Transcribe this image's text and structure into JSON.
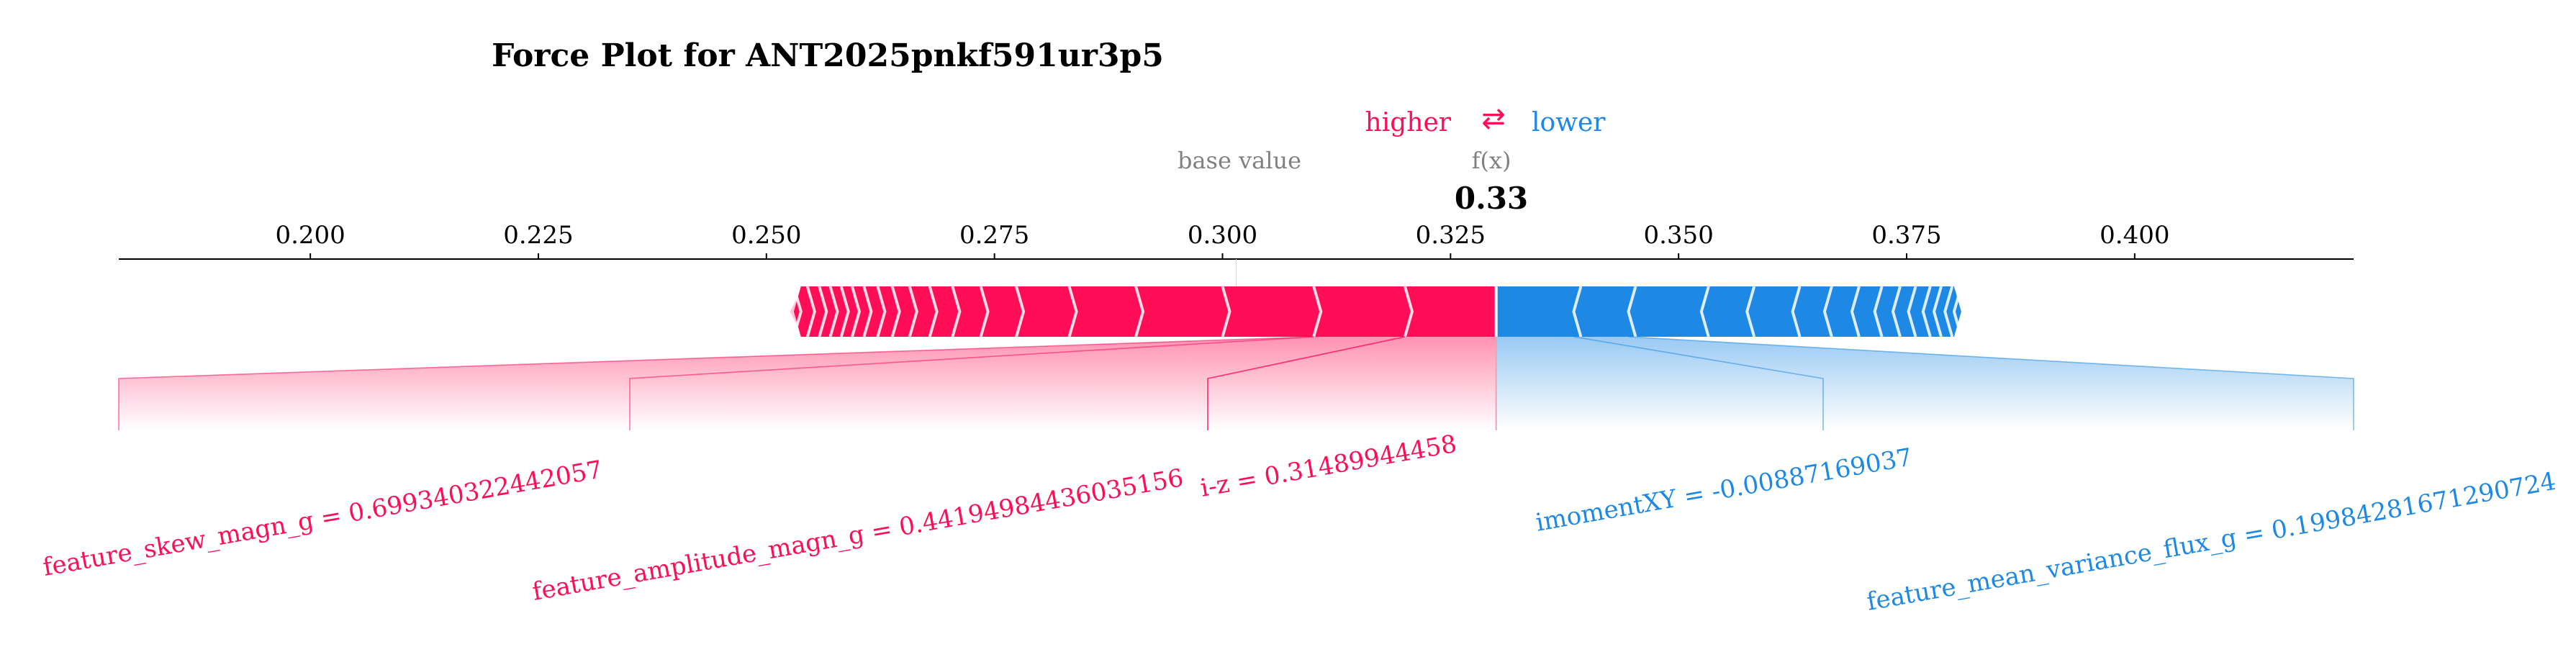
{
  "chart_data": {
    "type": "force_plot",
    "title": "Force Plot for ANT2025pnkf591ur3p5",
    "legend": {
      "higher_label": "higher",
      "arrow_glyph": "⇄",
      "lower_label": "lower",
      "placement": "top-center"
    },
    "base_value_label": "base value",
    "fx_label": "f(x)",
    "output_value": 0.33,
    "output_value_text": "0.33",
    "xlim": [
      0.179,
      0.424
    ],
    "ticks": [
      "0.200",
      "0.225",
      "0.250",
      "0.275",
      "0.300",
      "0.325",
      "0.350",
      "0.375",
      "0.400"
    ],
    "base_value": 0.3015,
    "positive_segments": [
      0.253,
      0.2545,
      0.2558,
      0.257,
      0.2582,
      0.2594,
      0.2607,
      0.2622,
      0.2638,
      0.2657,
      0.2679,
      0.2704,
      0.2735,
      0.2774,
      0.2832,
      0.2905,
      0.3,
      0.31,
      0.32
    ],
    "negative_segments": [
      0.3385,
      0.3445,
      0.3525,
      0.3575,
      0.3625,
      0.366,
      0.369,
      0.3715,
      0.3735,
      0.3752,
      0.3768,
      0.378,
      0.3792,
      0.3802
    ],
    "bar_extent": [
      0.2518,
      0.3812
    ],
    "positive_features": [
      {
        "label": "feature_skew_magn_g = 0.699340322442057",
        "from": 0.31,
        "to": 0.32
      },
      {
        "label": "feature_amplitude_magn_g = 0.44194984436035156",
        "from": 0.31,
        "to": 0.32
      },
      {
        "label": "i-z = 0.31489944458",
        "from": 0.32,
        "to": 0.33
      }
    ],
    "negative_features": [
      {
        "label": "imomentXY = -0.00887169037",
        "from": 0.33,
        "to": 0.3385
      },
      {
        "label": "feature_mean_variance_flux_g = 0.19984281671290724",
        "from": 0.3385,
        "to": 0.3445
      }
    ],
    "colors": {
      "positive": "#ff0d57",
      "negative": "#1e88e5",
      "positive_light": "#ffc3d5",
      "negative_light": "#d1e6fa",
      "muted_text": "#808080"
    }
  }
}
